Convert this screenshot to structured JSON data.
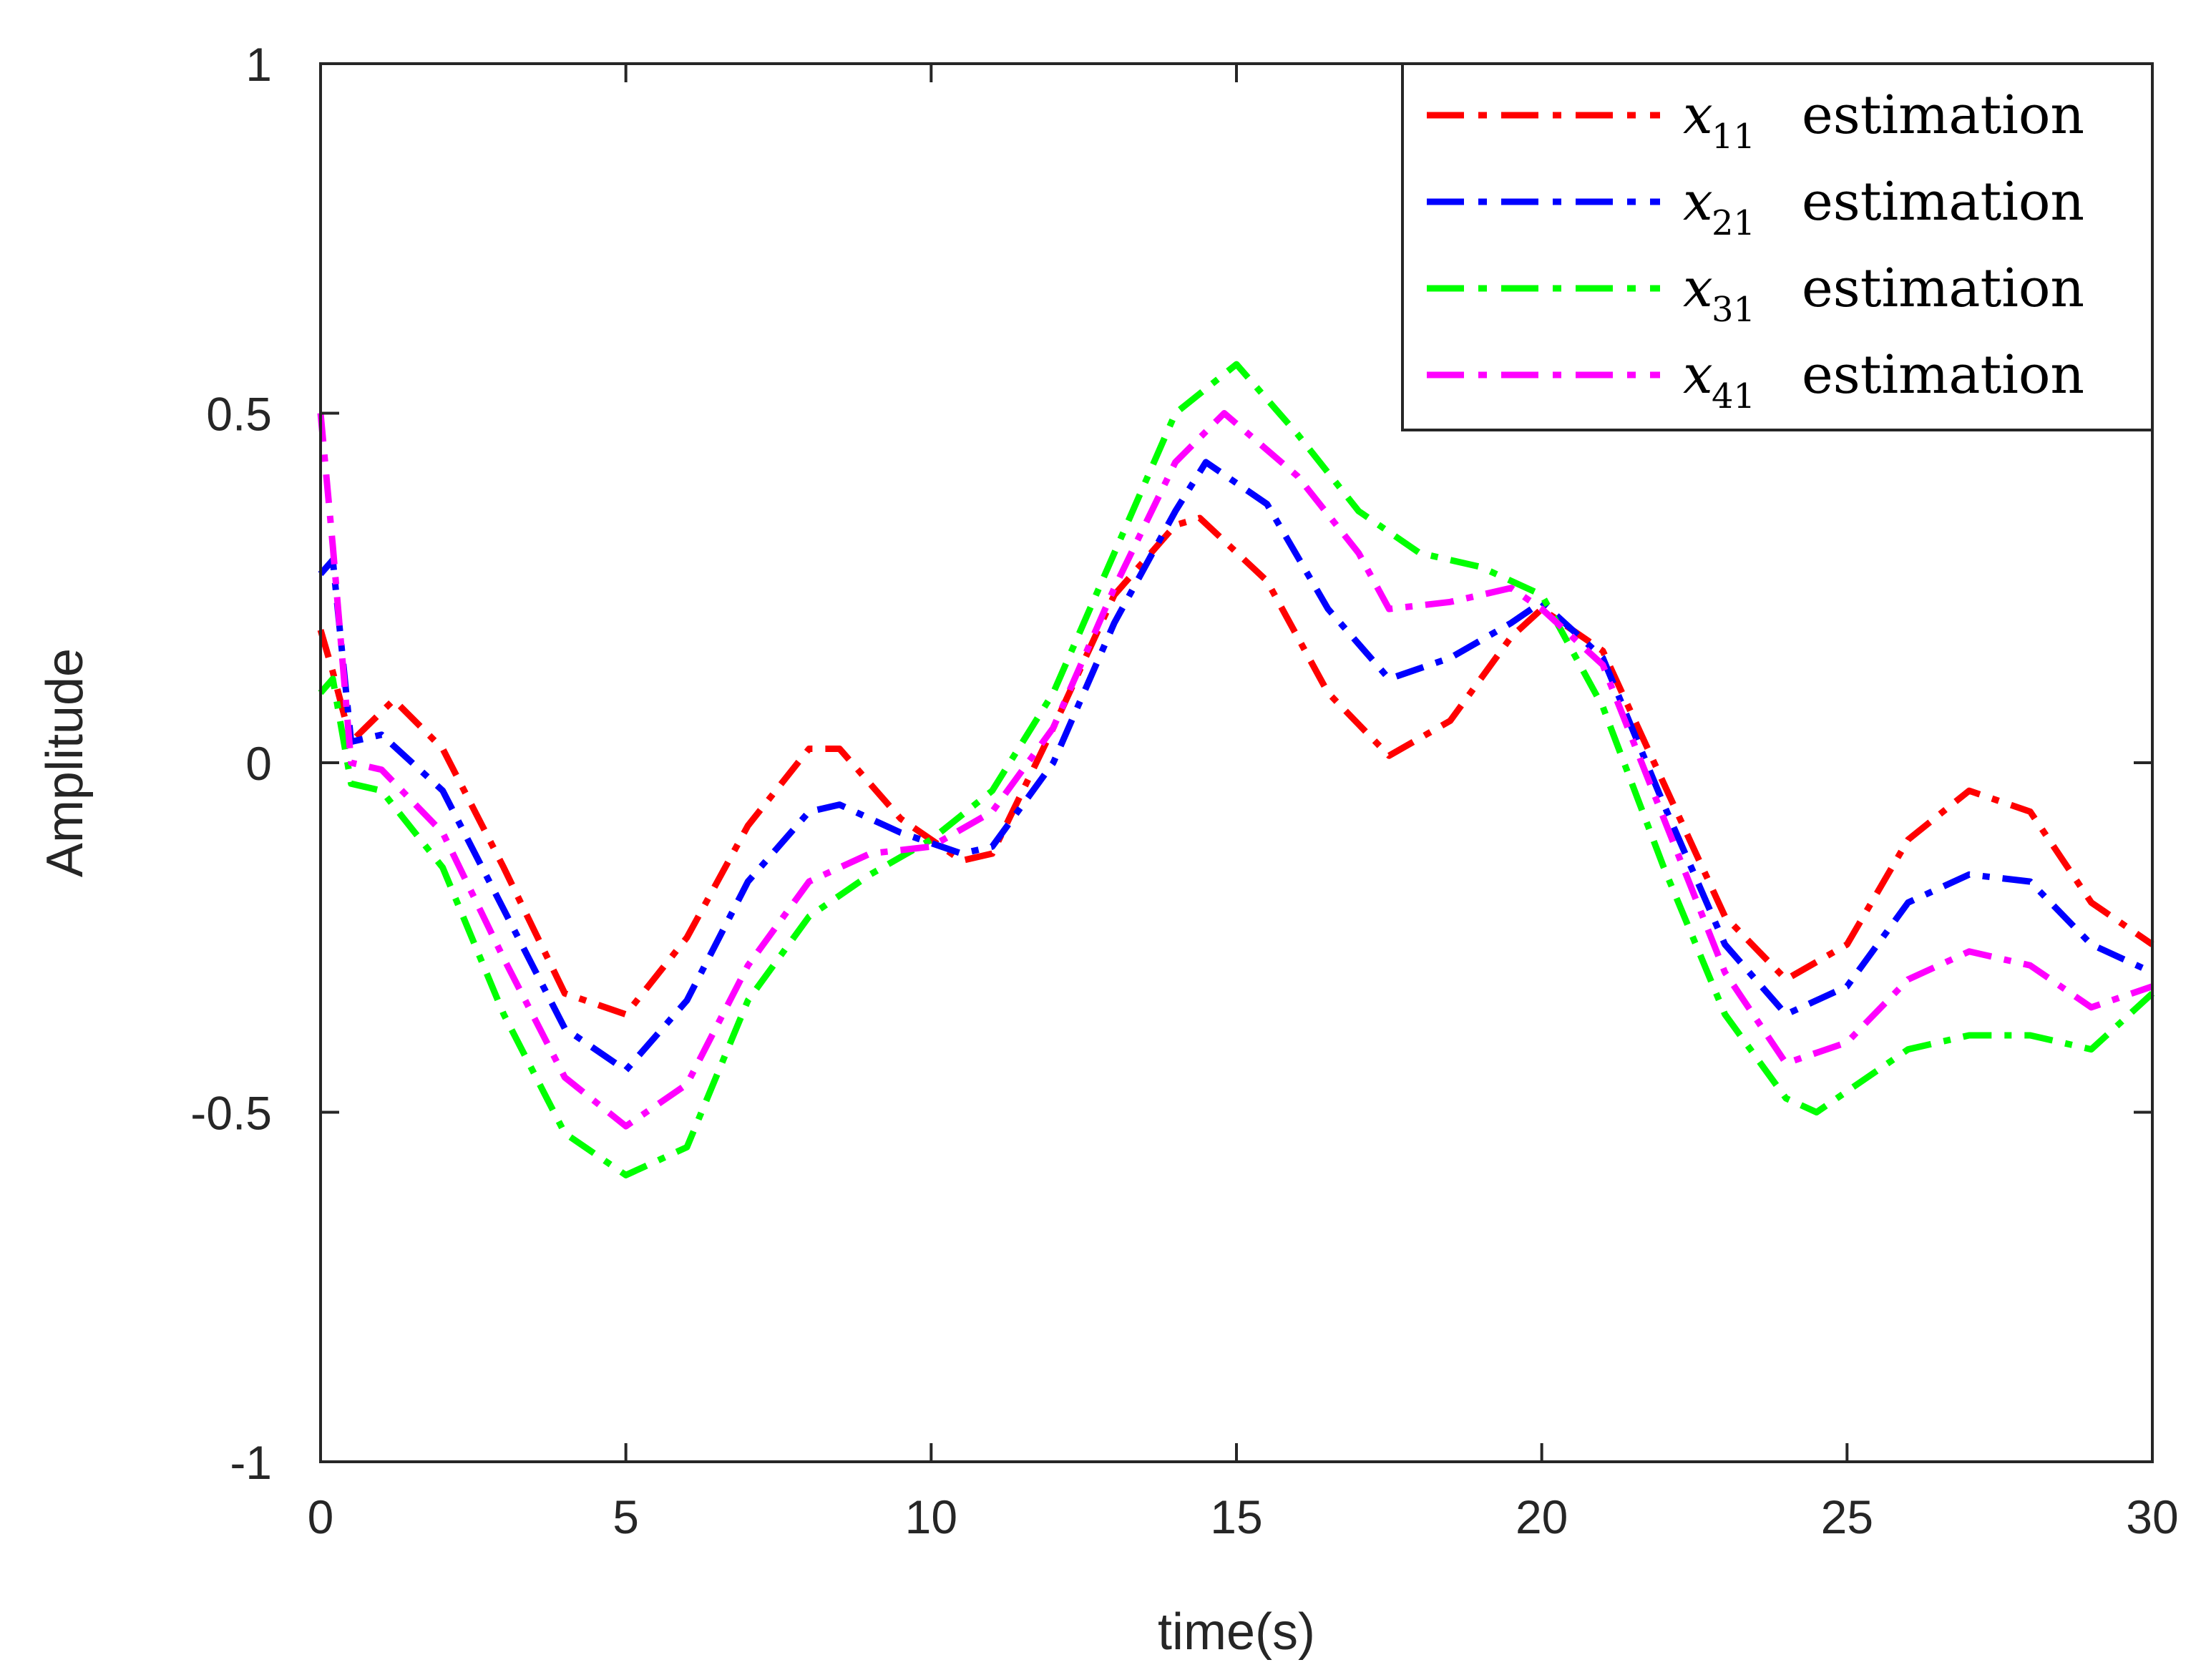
{
  "chart_data": {
    "type": "line",
    "title": "",
    "xlabel": "time(s)",
    "ylabel": "Amplitude",
    "xlim": [
      0,
      30
    ],
    "ylim": [
      -1,
      1
    ],
    "xticks": [
      0,
      5,
      10,
      15,
      20,
      25,
      30
    ],
    "xtick_labels": [
      "0",
      "5",
      "10",
      "15",
      "20",
      "25",
      "30"
    ],
    "yticks": [
      -1,
      -0.5,
      0,
      0.5,
      1
    ],
    "ytick_labels": [
      "-1",
      "-0.5",
      "0",
      "0.5",
      "1"
    ],
    "grid": false,
    "legend_position": "top-right",
    "series": [
      {
        "name": "x11 estimation",
        "var": "x",
        "sub": "11",
        "word": "estimation",
        "color": "#ff0000",
        "x": [
          0,
          0.2,
          0.5,
          1.2,
          2,
          3,
          4,
          5,
          6,
          7,
          8,
          8.5,
          9.5,
          10.5,
          11,
          12,
          13,
          14,
          14.4,
          15.5,
          16.5,
          17.5,
          18.5,
          19.5,
          20,
          21,
          22,
          23,
          24,
          25,
          26,
          27,
          28,
          29,
          30
        ],
        "y": [
          0.19,
          0.13,
          0.03,
          0.09,
          0.02,
          -0.15,
          -0.33,
          -0.36,
          -0.25,
          -0.09,
          0.02,
          0.02,
          -0.08,
          -0.14,
          -0.13,
          0.05,
          0.24,
          0.34,
          0.35,
          0.26,
          0.1,
          0.01,
          0.06,
          0.18,
          0.22,
          0.16,
          -0.03,
          -0.22,
          -0.31,
          -0.26,
          -0.11,
          -0.04,
          -0.07,
          -0.2,
          -0.26
        ]
      },
      {
        "name": "x21 estimation",
        "var": "x",
        "sub": "21",
        "word": "estimation",
        "color": "#0000ff",
        "x": [
          0,
          0.2,
          0.5,
          1,
          2,
          3,
          4,
          5,
          6,
          7,
          8,
          8.5,
          9.5,
          10.5,
          11,
          12,
          13,
          14,
          14.5,
          15.5,
          16.5,
          17.5,
          18.5,
          19.5,
          20,
          21,
          22,
          23,
          24,
          25,
          26,
          27,
          28,
          29,
          30
        ],
        "y": [
          0.27,
          0.29,
          0.03,
          0.04,
          -0.04,
          -0.21,
          -0.38,
          -0.44,
          -0.34,
          -0.17,
          -0.07,
          -0.06,
          -0.1,
          -0.13,
          -0.12,
          0,
          0.2,
          0.36,
          0.43,
          0.37,
          0.22,
          0.12,
          0.15,
          0.2,
          0.23,
          0.15,
          -0.06,
          -0.26,
          -0.36,
          -0.32,
          -0.2,
          -0.16,
          -0.17,
          -0.26,
          -0.3
        ]
      },
      {
        "name": "x31 estimation",
        "var": "x",
        "sub": "31",
        "word": "estimation",
        "color": "#00ff00",
        "x": [
          0,
          0.2,
          0.5,
          1,
          2,
          3,
          4,
          5,
          6,
          7,
          8,
          9,
          10,
          11,
          12,
          13,
          14,
          15,
          16,
          17,
          18,
          19,
          20,
          21,
          22,
          23,
          24,
          24.5,
          25,
          26,
          27,
          28,
          29,
          30
        ],
        "y": [
          0.1,
          0.12,
          -0.03,
          -0.04,
          -0.15,
          -0.36,
          -0.53,
          -0.59,
          -0.55,
          -0.34,
          -0.22,
          -0.16,
          -0.11,
          -0.04,
          0.1,
          0.3,
          0.5,
          0.57,
          0.47,
          0.36,
          0.3,
          0.28,
          0.24,
          0.08,
          -0.15,
          -0.36,
          -0.48,
          -0.5,
          -0.47,
          -0.41,
          -0.39,
          -0.39,
          -0.41,
          -0.33
        ]
      },
      {
        "name": "x41 estimation",
        "var": "x",
        "sub": "41",
        "word": "estimation",
        "color": "#ff00ff",
        "x": [
          0,
          0.2,
          0.5,
          1,
          2,
          3,
          4,
          5,
          6,
          7,
          8,
          9,
          10,
          11,
          12,
          13,
          14,
          14.8,
          16,
          17,
          17.5,
          18.5,
          19.5,
          20,
          21,
          22,
          23,
          24,
          25,
          26,
          27,
          28,
          29,
          30
        ],
        "y": [
          0.5,
          0.31,
          0,
          -0.01,
          -0.1,
          -0.28,
          -0.45,
          -0.52,
          -0.46,
          -0.29,
          -0.17,
          -0.13,
          -0.12,
          -0.07,
          0.05,
          0.25,
          0.43,
          0.5,
          0.41,
          0.3,
          0.22,
          0.23,
          0.25,
          0.22,
          0.14,
          -0.08,
          -0.3,
          -0.43,
          -0.4,
          -0.31,
          -0.27,
          -0.29,
          -0.35,
          -0.32
        ]
      }
    ]
  }
}
